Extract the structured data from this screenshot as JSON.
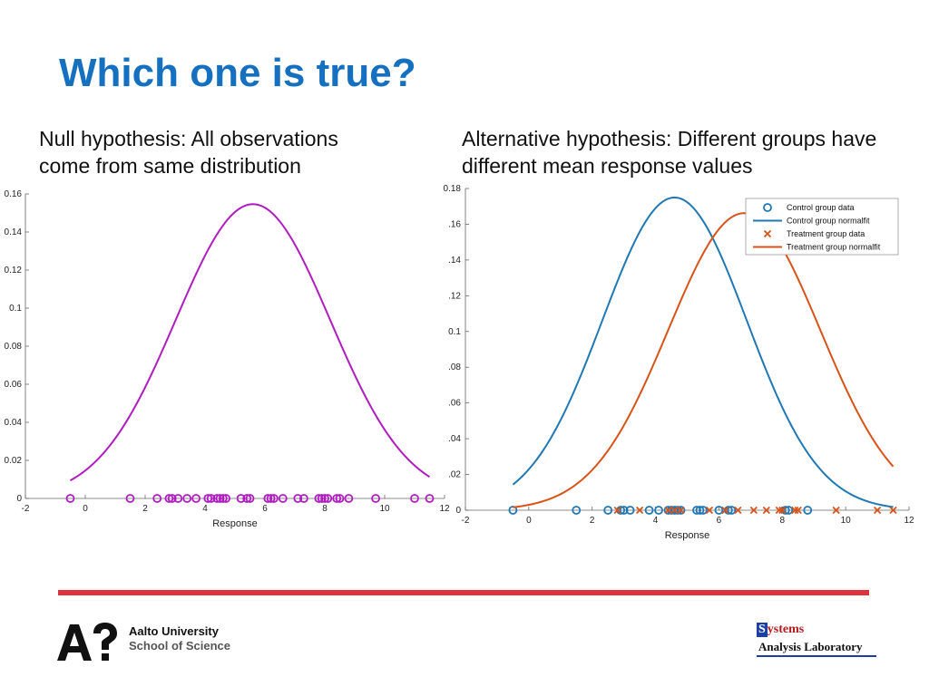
{
  "slide": {
    "title": "Which one is true?",
    "left_subtitle": [
      "Null hypothesis: All observations",
      "come from same distribution"
    ],
    "right_subtitle": [
      "Alternative hypothesis: Different groups have",
      "different mean response values"
    ]
  },
  "footer": {
    "university_line1": "Aalto University",
    "university_line2": "School of Science",
    "lab_line1": "ystems",
    "lab_initial": "S",
    "lab_line2": "Analysis Laboratory",
    "accent_color": "#e0323c"
  },
  "chart_data": [
    {
      "type": "line+scatter",
      "title": "",
      "xlabel": "Response",
      "ylabel": "",
      "xlim": [
        -2,
        12
      ],
      "ylim": [
        0,
        0.16
      ],
      "xticks": [
        -2,
        0,
        2,
        4,
        6,
        8,
        10,
        12
      ],
      "yticks": [
        0,
        0.02,
        0.04,
        0.06,
        0.08,
        0.1,
        0.12,
        0.14,
        0.16
      ],
      "ytick_labels": [
        "0",
        "0.02",
        "0.04",
        "0.06",
        "0.08",
        "0.1",
        "0.12",
        "0.14",
        "0.16"
      ],
      "series": [
        {
          "name": "All observations normal fit",
          "kind": "normal_curve",
          "mean": 5.6,
          "sd": 2.58,
          "x_range": [
            -0.5,
            11.5
          ],
          "color": "#b01cc0"
        },
        {
          "name": "All observations",
          "kind": "marker_circle",
          "color": "#b01cc0",
          "x": [
            -0.5,
            1.5,
            2.4,
            2.8,
            2.9,
            3.1,
            3.4,
            3.7,
            4.1,
            4.2,
            4.4,
            4.5,
            4.6,
            4.7,
            5.2,
            5.4,
            5.5,
            6.1,
            6.2,
            6.3,
            6.6,
            7.1,
            7.3,
            7.8,
            7.9,
            8.0,
            8.1,
            8.4,
            8.5,
            8.8,
            9.7,
            11.0,
            11.5
          ],
          "y": 0
        }
      ]
    },
    {
      "type": "line+scatter",
      "title": "",
      "xlabel": "Response",
      "ylabel": "",
      "xlim": [
        -2,
        12
      ],
      "ylim": [
        0,
        0.18
      ],
      "xticks": [
        -2,
        0,
        2,
        4,
        6,
        8,
        10,
        12
      ],
      "yticks": [
        0,
        0.02,
        0.04,
        0.06,
        0.08,
        0.1,
        0.12,
        0.14,
        0.16,
        0.18
      ],
      "ytick_labels": [
        "0",
        ".02",
        ".04",
        ".06",
        ".08",
        "0.1",
        ".12",
        ".14",
        ".16",
        "0.18"
      ],
      "legend_position": "top-right",
      "series": [
        {
          "name": "Control group data",
          "kind": "marker_circle",
          "color": "#1f77b4",
          "x": [
            -0.5,
            1.5,
            2.5,
            2.9,
            3.0,
            3.2,
            3.8,
            4.1,
            4.4,
            4.5,
            4.6,
            4.7,
            4.8,
            5.3,
            5.4,
            5.5,
            6.0,
            6.3,
            6.4,
            8.1,
            8.2,
            8.8
          ],
          "y": 0
        },
        {
          "name": "Control group normalfit",
          "kind": "normal_curve",
          "mean": 4.6,
          "sd": 2.28,
          "x_range": [
            -0.5,
            11.5
          ],
          "color": "#1f77b4"
        },
        {
          "name": "Treatment group data",
          "kind": "marker_x",
          "color": "#d95319",
          "x": [
            2.8,
            3.5,
            4.4,
            4.6,
            4.8,
            5.7,
            6.2,
            6.6,
            7.1,
            7.5,
            7.9,
            8.0,
            8.4,
            8.5,
            9.7,
            11.0,
            11.5
          ],
          "y": 0
        },
        {
          "name": "Treatment group normalfit",
          "kind": "normal_curve",
          "mean": 6.8,
          "sd": 2.4,
          "x_range": [
            -0.5,
            11.5
          ],
          "color": "#d95319"
        }
      ]
    }
  ]
}
